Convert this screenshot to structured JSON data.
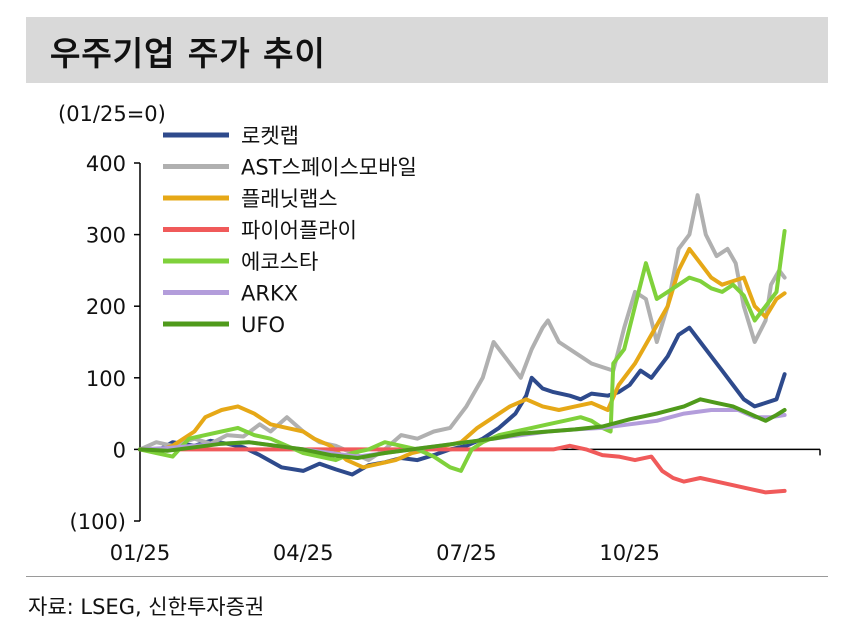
{
  "title": "우주기업 주가 추이",
  "source": "자료: LSEG, 신한투자증권",
  "chart_data": {
    "type": "line",
    "ylabel": "(01/25=0)",
    "ylim": [
      -100,
      400
    ],
    "yticks": [
      -100,
      0,
      100,
      200,
      300,
      400
    ],
    "ytick_labels": [
      "(100)",
      "0",
      "100",
      "200",
      "300",
      "400"
    ],
    "xlim": [
      0,
      12.5
    ],
    "xticks": [
      0,
      3,
      6,
      9
    ],
    "xtick_labels": [
      "01/25",
      "04/25",
      "07/25",
      "10/25"
    ],
    "legend_position": "top-left",
    "series": [
      {
        "name": "로켓랩",
        "color": "#2e4a8c",
        "points": [
          [
            0,
            0
          ],
          [
            0.3,
            -3
          ],
          [
            0.6,
            10
          ],
          [
            1,
            5
          ],
          [
            1.3,
            12
          ],
          [
            1.6,
            8
          ],
          [
            1.9,
            3
          ],
          [
            2.2,
            -8
          ],
          [
            2.6,
            -25
          ],
          [
            3,
            -30
          ],
          [
            3.3,
            -20
          ],
          [
            3.6,
            -28
          ],
          [
            3.9,
            -35
          ],
          [
            4.2,
            -22
          ],
          [
            4.5,
            -18
          ],
          [
            4.8,
            -12
          ],
          [
            5.1,
            -15
          ],
          [
            5.4,
            -8
          ],
          [
            5.7,
            0
          ],
          [
            6,
            5
          ],
          [
            6.3,
            15
          ],
          [
            6.6,
            30
          ],
          [
            6.9,
            50
          ],
          [
            7.1,
            75
          ],
          [
            7.2,
            100
          ],
          [
            7.4,
            85
          ],
          [
            7.6,
            80
          ],
          [
            7.9,
            75
          ],
          [
            8.1,
            70
          ],
          [
            8.3,
            78
          ],
          [
            8.6,
            75
          ],
          [
            8.8,
            80
          ],
          [
            9,
            90
          ],
          [
            9.2,
            110
          ],
          [
            9.4,
            100
          ],
          [
            9.7,
            130
          ],
          [
            9.9,
            160
          ],
          [
            10.1,
            170
          ],
          [
            10.3,
            150
          ],
          [
            10.5,
            130
          ],
          [
            10.7,
            110
          ],
          [
            10.9,
            90
          ],
          [
            11.1,
            70
          ],
          [
            11.3,
            60
          ],
          [
            11.5,
            65
          ],
          [
            11.7,
            70
          ],
          [
            11.85,
            105
          ]
        ]
      },
      {
        "name": "AST스페이스모바일",
        "color": "#b0b0b0",
        "points": [
          [
            0,
            0
          ],
          [
            0.3,
            10
          ],
          [
            0.6,
            5
          ],
          [
            1,
            15
          ],
          [
            1.3,
            8
          ],
          [
            1.6,
            20
          ],
          [
            1.9,
            18
          ],
          [
            2.2,
            35
          ],
          [
            2.4,
            25
          ],
          [
            2.7,
            45
          ],
          [
            3,
            25
          ],
          [
            3.3,
            10
          ],
          [
            3.6,
            5
          ],
          [
            3.9,
            -5
          ],
          [
            4.2,
            -15
          ],
          [
            4.5,
            0
          ],
          [
            4.8,
            20
          ],
          [
            5.1,
            15
          ],
          [
            5.4,
            25
          ],
          [
            5.7,
            30
          ],
          [
            6,
            60
          ],
          [
            6.3,
            100
          ],
          [
            6.5,
            150
          ],
          [
            6.7,
            130
          ],
          [
            7,
            100
          ],
          [
            7.2,
            140
          ],
          [
            7.4,
            170
          ],
          [
            7.5,
            180
          ],
          [
            7.7,
            150
          ],
          [
            7.9,
            140
          ],
          [
            8.1,
            130
          ],
          [
            8.3,
            120
          ],
          [
            8.5,
            115
          ],
          [
            8.7,
            110
          ],
          [
            8.9,
            170
          ],
          [
            9.1,
            220
          ],
          [
            9.3,
            210
          ],
          [
            9.5,
            150
          ],
          [
            9.7,
            200
          ],
          [
            9.9,
            280
          ],
          [
            10.1,
            300
          ],
          [
            10.25,
            355
          ],
          [
            10.4,
            300
          ],
          [
            10.6,
            270
          ],
          [
            10.8,
            280
          ],
          [
            10.95,
            260
          ],
          [
            11.1,
            200
          ],
          [
            11.3,
            150
          ],
          [
            11.5,
            180
          ],
          [
            11.6,
            230
          ],
          [
            11.75,
            250
          ],
          [
            11.85,
            240
          ]
        ]
      },
      {
        "name": "플래닛랩스",
        "color": "#e6a817",
        "points": [
          [
            0,
            0
          ],
          [
            0.3,
            -3
          ],
          [
            0.6,
            5
          ],
          [
            1,
            25
          ],
          [
            1.2,
            45
          ],
          [
            1.5,
            55
          ],
          [
            1.8,
            60
          ],
          [
            2.1,
            50
          ],
          [
            2.4,
            35
          ],
          [
            2.7,
            30
          ],
          [
            3,
            25
          ],
          [
            3.2,
            15
          ],
          [
            3.5,
            5
          ],
          [
            3.8,
            -15
          ],
          [
            4.1,
            -25
          ],
          [
            4.4,
            -20
          ],
          [
            4.7,
            -15
          ],
          [
            5,
            -5
          ],
          [
            5.3,
            0
          ],
          [
            5.6,
            5
          ],
          [
            5.9,
            10
          ],
          [
            6.2,
            30
          ],
          [
            6.5,
            45
          ],
          [
            6.8,
            60
          ],
          [
            7.1,
            70
          ],
          [
            7.4,
            60
          ],
          [
            7.7,
            55
          ],
          [
            8,
            60
          ],
          [
            8.3,
            65
          ],
          [
            8.6,
            55
          ],
          [
            8.8,
            90
          ],
          [
            9.1,
            120
          ],
          [
            9.4,
            160
          ],
          [
            9.7,
            200
          ],
          [
            9.9,
            250
          ],
          [
            10.1,
            280
          ],
          [
            10.3,
            260
          ],
          [
            10.5,
            240
          ],
          [
            10.7,
            230
          ],
          [
            10.9,
            235
          ],
          [
            11.1,
            240
          ],
          [
            11.3,
            200
          ],
          [
            11.5,
            185
          ],
          [
            11.7,
            210
          ],
          [
            11.85,
            218
          ]
        ]
      },
      {
        "name": "파이어플라이",
        "color": "#f05a5a",
        "points": [
          [
            0,
            0
          ],
          [
            1,
            0
          ],
          [
            2,
            0
          ],
          [
            3,
            0
          ],
          [
            4,
            0
          ],
          [
            5,
            0
          ],
          [
            6,
            0
          ],
          [
            7,
            0
          ],
          [
            7.6,
            0
          ],
          [
            7.9,
            5
          ],
          [
            8.2,
            0
          ],
          [
            8.5,
            -8
          ],
          [
            8.8,
            -10
          ],
          [
            9.1,
            -15
          ],
          [
            9.4,
            -10
          ],
          [
            9.6,
            -30
          ],
          [
            9.8,
            -40
          ],
          [
            10,
            -45
          ],
          [
            10.3,
            -40
          ],
          [
            10.6,
            -45
          ],
          [
            10.9,
            -50
          ],
          [
            11.2,
            -55
          ],
          [
            11.5,
            -60
          ],
          [
            11.85,
            -58
          ]
        ]
      },
      {
        "name": "에코스타",
        "color": "#7fd13b",
        "points": [
          [
            0,
            0
          ],
          [
            0.3,
            -5
          ],
          [
            0.6,
            -10
          ],
          [
            0.9,
            15
          ],
          [
            1.2,
            20
          ],
          [
            1.5,
            25
          ],
          [
            1.8,
            30
          ],
          [
            2.1,
            20
          ],
          [
            2.4,
            15
          ],
          [
            2.7,
            5
          ],
          [
            3,
            -5
          ],
          [
            3.3,
            -10
          ],
          [
            3.6,
            -15
          ],
          [
            3.9,
            -5
          ],
          [
            4.2,
            0
          ],
          [
            4.5,
            10
          ],
          [
            4.8,
            5
          ],
          [
            5.1,
            0
          ],
          [
            5.4,
            -10
          ],
          [
            5.7,
            -25
          ],
          [
            5.9,
            -30
          ],
          [
            6.1,
            0
          ],
          [
            6.3,
            10
          ],
          [
            6.6,
            20
          ],
          [
            6.9,
            25
          ],
          [
            7.2,
            30
          ],
          [
            7.5,
            35
          ],
          [
            7.8,
            40
          ],
          [
            8.1,
            45
          ],
          [
            8.3,
            40
          ],
          [
            8.5,
            30
          ],
          [
            8.65,
            25
          ],
          [
            8.7,
            120
          ],
          [
            8.9,
            140
          ],
          [
            9.1,
            200
          ],
          [
            9.3,
            260
          ],
          [
            9.5,
            210
          ],
          [
            9.7,
            220
          ],
          [
            9.9,
            230
          ],
          [
            10.1,
            240
          ],
          [
            10.3,
            235
          ],
          [
            10.5,
            225
          ],
          [
            10.7,
            220
          ],
          [
            10.9,
            230
          ],
          [
            11.1,
            215
          ],
          [
            11.3,
            180
          ],
          [
            11.5,
            200
          ],
          [
            11.7,
            220
          ],
          [
            11.85,
            305
          ]
        ]
      },
      {
        "name": "ARKX",
        "color": "#b39ddb",
        "points": [
          [
            0,
            0
          ],
          [
            0.5,
            2
          ],
          [
            1,
            5
          ],
          [
            1.5,
            8
          ],
          [
            2,
            10
          ],
          [
            2.5,
            5
          ],
          [
            3,
            0
          ],
          [
            3.5,
            -5
          ],
          [
            4,
            -10
          ],
          [
            4.5,
            -5
          ],
          [
            5,
            0
          ],
          [
            5.5,
            5
          ],
          [
            6,
            10
          ],
          [
            6.5,
            15
          ],
          [
            7,
            20
          ],
          [
            7.5,
            25
          ],
          [
            8,
            28
          ],
          [
            8.5,
            30
          ],
          [
            9,
            35
          ],
          [
            9.5,
            40
          ],
          [
            10,
            50
          ],
          [
            10.5,
            55
          ],
          [
            11,
            55
          ],
          [
            11.3,
            45
          ],
          [
            11.6,
            45
          ],
          [
            11.85,
            48
          ]
        ]
      },
      {
        "name": "UFO",
        "color": "#4f9a1b",
        "points": [
          [
            0,
            0
          ],
          [
            0.5,
            -2
          ],
          [
            1,
            3
          ],
          [
            1.5,
            8
          ],
          [
            2,
            10
          ],
          [
            2.5,
            5
          ],
          [
            3,
            0
          ],
          [
            3.5,
            -8
          ],
          [
            4,
            -12
          ],
          [
            4.5,
            -5
          ],
          [
            5,
            0
          ],
          [
            5.5,
            5
          ],
          [
            6,
            10
          ],
          [
            6.5,
            15
          ],
          [
            7,
            22
          ],
          [
            7.5,
            25
          ],
          [
            8,
            28
          ],
          [
            8.5,
            32
          ],
          [
            9,
            42
          ],
          [
            9.5,
            50
          ],
          [
            10,
            60
          ],
          [
            10.3,
            70
          ],
          [
            10.6,
            65
          ],
          [
            10.9,
            60
          ],
          [
            11.2,
            50
          ],
          [
            11.5,
            40
          ],
          [
            11.7,
            48
          ],
          [
            11.85,
            55
          ]
        ]
      }
    ]
  }
}
